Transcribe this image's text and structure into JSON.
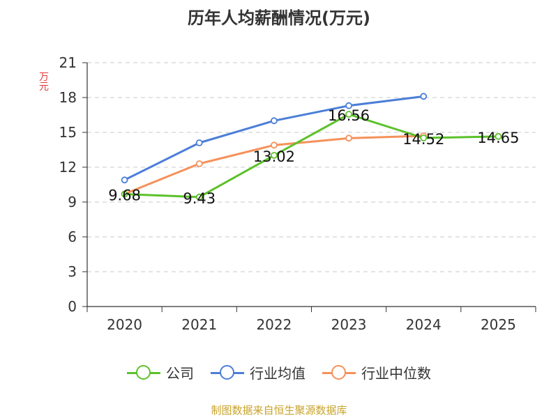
{
  "chart_data": {
    "type": "line",
    "title": "历年人均薪酬情况(万元)",
    "ylabel": "万元",
    "xlabel": "",
    "categories": [
      "2020",
      "2021",
      "2022",
      "2023",
      "2024",
      "2025"
    ],
    "ylim": [
      0,
      21
    ],
    "yticks": [
      0,
      3,
      6,
      9,
      12,
      15,
      18,
      21
    ],
    "grid": true,
    "legend_position": "bottom",
    "series": [
      {
        "name": "公司",
        "color": "#5cc12a",
        "values": [
          9.68,
          9.43,
          13.02,
          16.56,
          14.52,
          14.65
        ],
        "labels": [
          "9.68",
          "9.43",
          "13.02",
          "16.56",
          "14.52",
          "14.65"
        ]
      },
      {
        "name": "行业均值",
        "color": "#4b7ed8",
        "values": [
          10.9,
          14.1,
          16.0,
          17.3,
          18.1,
          null
        ],
        "labels": []
      },
      {
        "name": "行业中位数",
        "color": "#f5915a",
        "values": [
          9.7,
          12.3,
          13.9,
          14.5,
          14.7,
          null
        ],
        "labels": []
      }
    ]
  },
  "source": "制图数据来自恒生聚源数据库"
}
